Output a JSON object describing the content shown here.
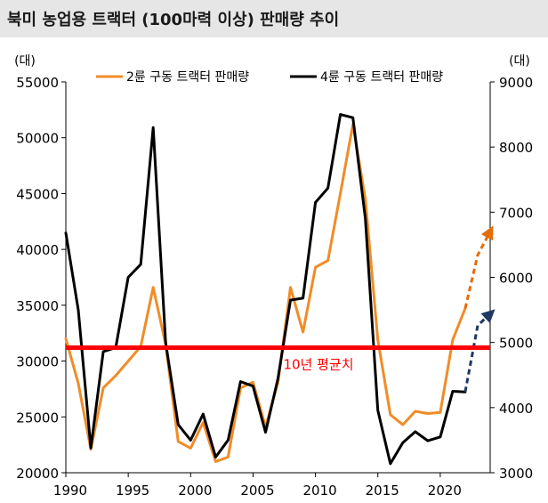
{
  "title": "북미 농업용 트랙터 (100마력 이상) 판매량 추이",
  "chart_data": {
    "type": "line",
    "left_unit": "(대)",
    "right_unit": "(대)",
    "xlim": [
      1990,
      2024
    ],
    "x_ticks": [
      1990,
      1995,
      2000,
      2005,
      2010,
      2015,
      2020
    ],
    "ylim_left": [
      20000,
      55000
    ],
    "y_ticks_left": [
      20000,
      25000,
      30000,
      35000,
      40000,
      45000,
      50000,
      55000
    ],
    "ylim_right": [
      3000,
      9000
    ],
    "y_ticks_right": [
      3000,
      4000,
      5000,
      6000,
      7000,
      8000,
      9000
    ],
    "reference_line": {
      "label": "10년 평균치",
      "value": 31200,
      "axis": "left",
      "color": "#ff0000"
    },
    "series": [
      {
        "name": "2륜 구동 트랙터 판매량",
        "axis": "left",
        "color": "#f08c28",
        "x": [
          1990,
          1991,
          1992,
          1993,
          1994,
          1995,
          1996,
          1997,
          1998,
          1999,
          2000,
          2001,
          2002,
          2003,
          2004,
          2005,
          2006,
          2007,
          2008,
          2009,
          2010,
          2011,
          2012,
          2013,
          2014,
          2015,
          2016,
          2017,
          2018,
          2019,
          2020,
          2021,
          2022
        ],
        "values": [
          32000,
          28000,
          22100,
          27600,
          28700,
          30000,
          31300,
          36600,
          31500,
          22800,
          22200,
          24500,
          21000,
          21400,
          27600,
          28100,
          24100,
          28100,
          36600,
          32600,
          38400,
          39000,
          45000,
          51200,
          44500,
          31900,
          25200,
          24300,
          25500,
          25300,
          25400,
          31900,
          34700
        ],
        "projection": {
          "x": [
            2022,
            2023,
            2024
          ],
          "values": [
            34700,
            39500,
            41600
          ]
        }
      },
      {
        "name": "4륜 구동 트랙터 판매량",
        "axis": "right",
        "color": "#000000",
        "x": [
          1990,
          1991,
          1992,
          1993,
          1994,
          1995,
          1996,
          1997,
          1998,
          1999,
          2000,
          2001,
          2002,
          2003,
          2004,
          2005,
          2006,
          2007,
          2008,
          2009,
          2010,
          2011,
          2012,
          2013,
          2014,
          2015,
          2016,
          2017,
          2018,
          2019,
          2020,
          2021,
          2022
        ],
        "values": [
          6680,
          5500,
          3380,
          4860,
          4920,
          6000,
          6200,
          8300,
          5000,
          3740,
          3500,
          3900,
          3240,
          3500,
          4400,
          4330,
          3620,
          4450,
          5650,
          5680,
          7150,
          7370,
          8500,
          8450,
          6900,
          3960,
          3140,
          3460,
          3630,
          3490,
          3550,
          4250,
          4240
        ],
        "projection": {
          "x": [
            2022,
            2023,
            2024
          ],
          "values": [
            4240,
            5260,
            5440
          ]
        }
      }
    ]
  }
}
